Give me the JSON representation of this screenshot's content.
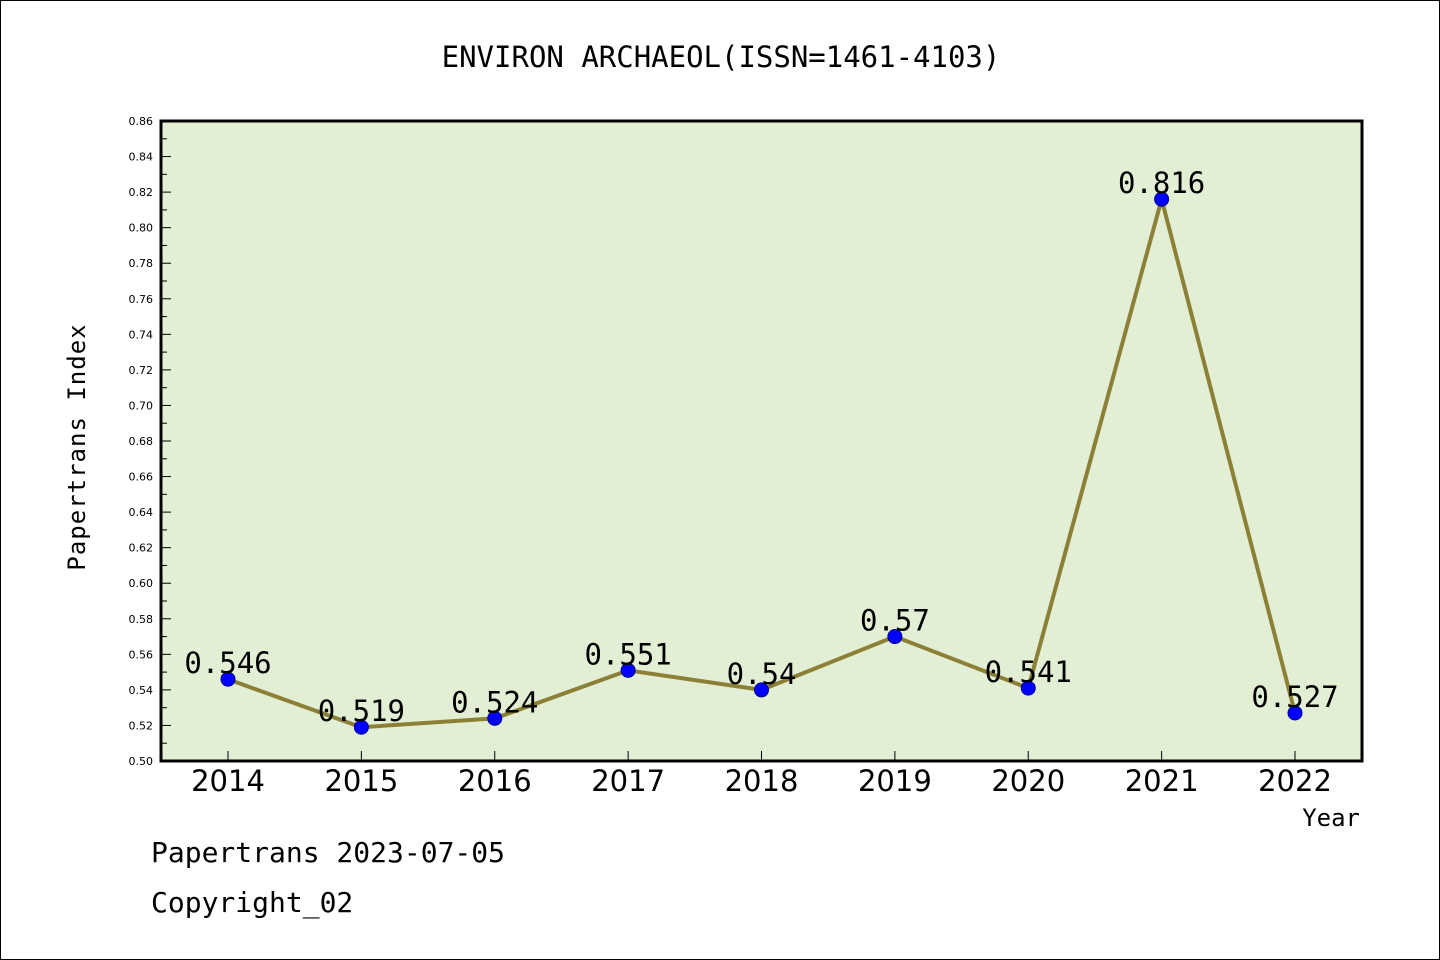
{
  "footer": {
    "date_line": "Papertrans 2023-07-05",
    "copyright_line": "Copyright_02"
  },
  "colors": {
    "plot_background": "#e2efd5",
    "line": "#8b8035",
    "marker": "#0000ff",
    "frame": "#000000"
  },
  "chart_data": {
    "type": "line",
    "title": "ENVIRON ARCHAEOL(ISSN=1461-4103)",
    "xlabel": "Year",
    "ylabel": "Papertrans Index",
    "categories": [
      "2014",
      "2015",
      "2016",
      "2017",
      "2018",
      "2019",
      "2020",
      "2021",
      "2022"
    ],
    "series": [
      {
        "values": [
          0.546,
          0.519,
          0.524,
          0.551,
          0.54,
          0.57,
          0.541,
          0.816,
          0.527
        ],
        "labels": [
          "0.546",
          "0.519",
          "0.524",
          "0.551",
          "0.54",
          "0.57",
          "0.541",
          "0.816",
          "0.527"
        ]
      }
    ],
    "ylim": [
      0.5,
      0.86
    ],
    "yticks": [
      "0.50",
      "0.52",
      "0.54",
      "0.56",
      "0.58",
      "0.60",
      "0.62",
      "0.64",
      "0.66",
      "0.68",
      "0.70",
      "0.72",
      "0.74",
      "0.76",
      "0.78",
      "0.80",
      "0.82",
      "0.84",
      "0.86"
    ],
    "grid": false,
    "legend": "none",
    "marker_shape": "circle"
  }
}
